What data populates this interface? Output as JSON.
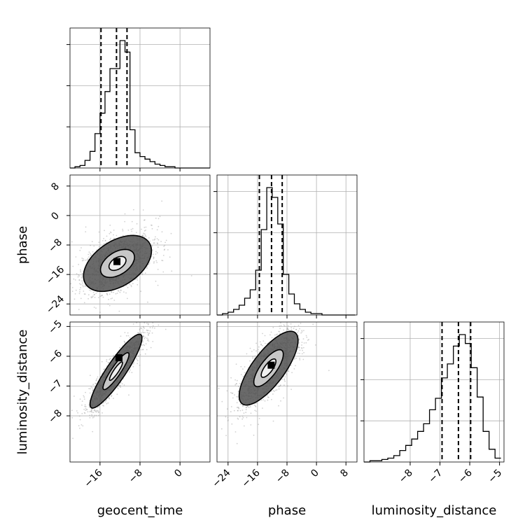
{
  "chart_data": {
    "type": "corner",
    "parameters": [
      "geocent_time",
      "phase",
      "luminosity_distance"
    ],
    "labels": {
      "x": [
        "geocent_time",
        "phase",
        "luminosity_distance"
      ],
      "y": [
        "phase",
        "luminosity_distance"
      ]
    },
    "ranges": {
      "geocent_time": [
        -22.0,
        6.0
      ],
      "phase": [
        -27.0,
        11.0
      ],
      "luminosity_distance": [
        -9.55,
        -4.85
      ]
    },
    "ticks": {
      "geocent_time": {
        "values": [
          -16,
          -8,
          0
        ],
        "labels": [
          "−16",
          "−8",
          "0"
        ]
      },
      "phase": {
        "values": [
          -24,
          -16,
          -8,
          0,
          8
        ],
        "labels": [
          "−24",
          "−16",
          "−8",
          "0",
          "8"
        ]
      },
      "luminosity_distance": {
        "values": [
          -8,
          -7,
          -6,
          -5
        ],
        "labels": [
          "−8",
          "−7",
          "−6",
          "−5"
        ]
      }
    },
    "quantiles": {
      "geocent_time": [
        -15.8,
        -12.7,
        -10.6
      ],
      "phase": [
        -15.5,
        -12.2,
        -9.3
      ],
      "luminosity_distance": [
        -6.93,
        -6.38,
        -5.97
      ]
    },
    "histograms": {
      "geocent_time": {
        "bins": [
          -22,
          -21,
          -20,
          -19,
          -18,
          -17,
          -16,
          -15,
          -14,
          -13,
          -12,
          -11,
          -10,
          -9,
          -8,
          -7,
          -6,
          -5,
          -4,
          -3,
          -2,
          -1,
          0,
          1,
          2,
          3,
          4,
          5,
          6
        ],
        "counts": [
          0,
          1,
          2,
          6,
          13,
          27,
          43,
          60,
          78,
          78,
          100,
          91,
          30,
          12,
          9,
          7,
          5,
          3,
          2,
          1,
          1,
          0,
          0,
          0,
          0,
          0,
          0,
          0
        ]
      },
      "phase": {
        "bins": [
          -27,
          -25.5,
          -24,
          -22.5,
          -21,
          -19.5,
          -18,
          -16.5,
          -15,
          -13.5,
          -12,
          -10.5,
          -9,
          -7.5,
          -6,
          -4.5,
          -3,
          -1.5,
          0,
          1.5,
          3,
          4.5,
          6,
          7.5,
          9,
          10.5
        ],
        "counts": [
          0,
          1,
          2,
          4,
          7,
          12,
          18,
          32,
          61,
          91,
          84,
          65,
          29,
          15,
          8,
          4,
          2,
          1,
          1,
          0,
          0,
          0,
          0,
          0,
          0
        ]
      },
      "luminosity_distance": {
        "bins": [
          -9.55,
          -9.35,
          -9.15,
          -8.95,
          -8.75,
          -8.55,
          -8.35,
          -8.15,
          -7.95,
          -7.75,
          -7.55,
          -7.35,
          -7.15,
          -6.95,
          -6.75,
          -6.55,
          -6.35,
          -6.15,
          -5.95,
          -5.75,
          -5.55,
          -5.35,
          -5.15,
          -4.95
        ],
        "counts": [
          0,
          1,
          1,
          2,
          3,
          5,
          9,
          13,
          18,
          24,
          30,
          41,
          50,
          66,
          77,
          91,
          100,
          93,
          74,
          51,
          24,
          10,
          3
        ]
      }
    },
    "joint": [
      {
        "x": "geocent_time",
        "y": "phase",
        "mean": [
          -12.5,
          -13.0
        ],
        "std": [
          3.4,
          3.8
        ],
        "rho": 0.45,
        "contour_sigmas": [
          0.5,
          1.0,
          2.0
        ],
        "peak": [
          -12.6,
          -12.5
        ]
      },
      {
        "x": "geocent_time",
        "y": "luminosity_distance",
        "mean": [
          -12.8,
          -6.5
        ],
        "std": [
          2.6,
          0.62
        ],
        "rho": 0.9,
        "contour_sigmas": [
          0.5,
          1.0,
          2.0
        ],
        "peak": [
          -12.2,
          -6.05
        ]
      },
      {
        "x": "phase",
        "y": "luminosity_distance",
        "mean": [
          -13.0,
          -6.4
        ],
        "std": [
          4.0,
          0.62
        ],
        "rho": 0.75,
        "contour_sigmas": [
          0.5,
          1.0,
          2.0
        ],
        "peak": [
          -12.3,
          -6.3
        ]
      }
    ],
    "grid": true,
    "colors": {
      "line": "#000000",
      "points": "#9a9a9a",
      "grid": "#b0b0b0"
    }
  }
}
